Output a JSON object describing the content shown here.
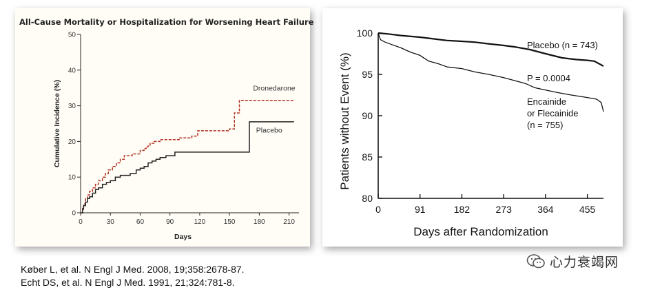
{
  "chart_data": [
    {
      "type": "line",
      "title": "All-Cause Mortality or Hospitalization for Worsening Heart Failure",
      "xlabel": "Days",
      "ylabel": "Cumulative Incidence (%)",
      "xlim": [
        0,
        220
      ],
      "ylim": [
        0,
        50
      ],
      "xticks": [
        0,
        30,
        60,
        90,
        120,
        150,
        180,
        210
      ],
      "yticks": [
        0,
        10,
        20,
        30,
        40,
        50
      ],
      "series": [
        {
          "name": "Dronedarone",
          "color": "#b03020",
          "style": "dashed",
          "x": [
            0,
            2,
            3,
            5,
            7,
            9,
            12,
            15,
            18,
            22,
            25,
            28,
            32,
            36,
            40,
            44,
            52,
            60,
            64,
            66,
            68,
            70,
            74,
            80,
            90,
            100,
            112,
            118,
            130,
            150,
            155,
            160,
            215
          ],
          "y": [
            0,
            1.5,
            2.5,
            4,
            5,
            6,
            7,
            8,
            9,
            10,
            11,
            12,
            13,
            14,
            15,
            16,
            16.5,
            17.5,
            18,
            18.5,
            19,
            19.5,
            20,
            20.5,
            20.5,
            21,
            21.5,
            23,
            23,
            23.5,
            28,
            31.5,
            31.5
          ]
        },
        {
          "name": "Placebo",
          "color": "#222222",
          "style": "solid",
          "x": [
            0,
            2,
            3,
            5,
            7,
            9,
            12,
            15,
            18,
            22,
            26,
            30,
            35,
            40,
            50,
            56,
            60,
            64,
            68,
            72,
            76,
            80,
            86,
            95,
            100,
            165,
            170,
            215
          ],
          "y": [
            0,
            1,
            2,
            3,
            4,
            4.5,
            5.5,
            6.5,
            7,
            8,
            8.5,
            9,
            10,
            10.5,
            11,
            12,
            12.5,
            13,
            14,
            14.5,
            15,
            15.5,
            16,
            17,
            17,
            17,
            25.5,
            25.5
          ]
        }
      ]
    },
    {
      "type": "line",
      "title": "",
      "xlabel": "Days after Randomization",
      "ylabel": "Patients without Event (%)",
      "xlim": [
        0,
        490
      ],
      "ylim": [
        80,
        100
      ],
      "xticks": [
        0,
        91,
        182,
        273,
        364,
        455
      ],
      "yticks": [
        80,
        85,
        90,
        95,
        100
      ],
      "annotations": [
        "Placebo (n = 743)",
        "P = 0.0004",
        "Encainide",
        "or Flecainide",
        "(n = 755)"
      ],
      "series": [
        {
          "name": "Placebo (n = 743)",
          "color": "#111111",
          "style": "solid",
          "x": [
            0,
            20,
            50,
            91,
            120,
            150,
            182,
            210,
            240,
            273,
            300,
            330,
            364,
            400,
            430,
            455,
            470,
            490
          ],
          "y": [
            100,
            99.9,
            99.7,
            99.5,
            99.3,
            99.1,
            99.0,
            98.9,
            98.7,
            98.5,
            98.3,
            98.0,
            97.5,
            97.0,
            96.8,
            96.7,
            96.6,
            96.0
          ]
        },
        {
          "name": "Encainide or Flecainide (n = 755)",
          "color": "#111111",
          "style": "solid",
          "x": [
            0,
            5,
            15,
            30,
            50,
            70,
            91,
            110,
            130,
            150,
            182,
            210,
            240,
            273,
            300,
            320,
            340,
            364,
            390,
            420,
            455,
            475,
            485,
            490
          ],
          "y": [
            100,
            99.2,
            98.9,
            98.6,
            98.2,
            97.7,
            97.3,
            96.6,
            96.3,
            95.9,
            95.7,
            95.3,
            95.0,
            94.6,
            94.2,
            93.9,
            93.4,
            93.1,
            92.8,
            92.5,
            92.2,
            92.0,
            91.6,
            90.5
          ]
        }
      ]
    }
  ],
  "references": [
    "Køber L, et al. N Engl J Med. 2008, 19;358:2678-87.",
    "Echt DS, et al. N Engl J Med. 1991, 21;324:781-8."
  ],
  "watermark": {
    "text": "心力衰竭网",
    "icon": "wechat-icon"
  }
}
